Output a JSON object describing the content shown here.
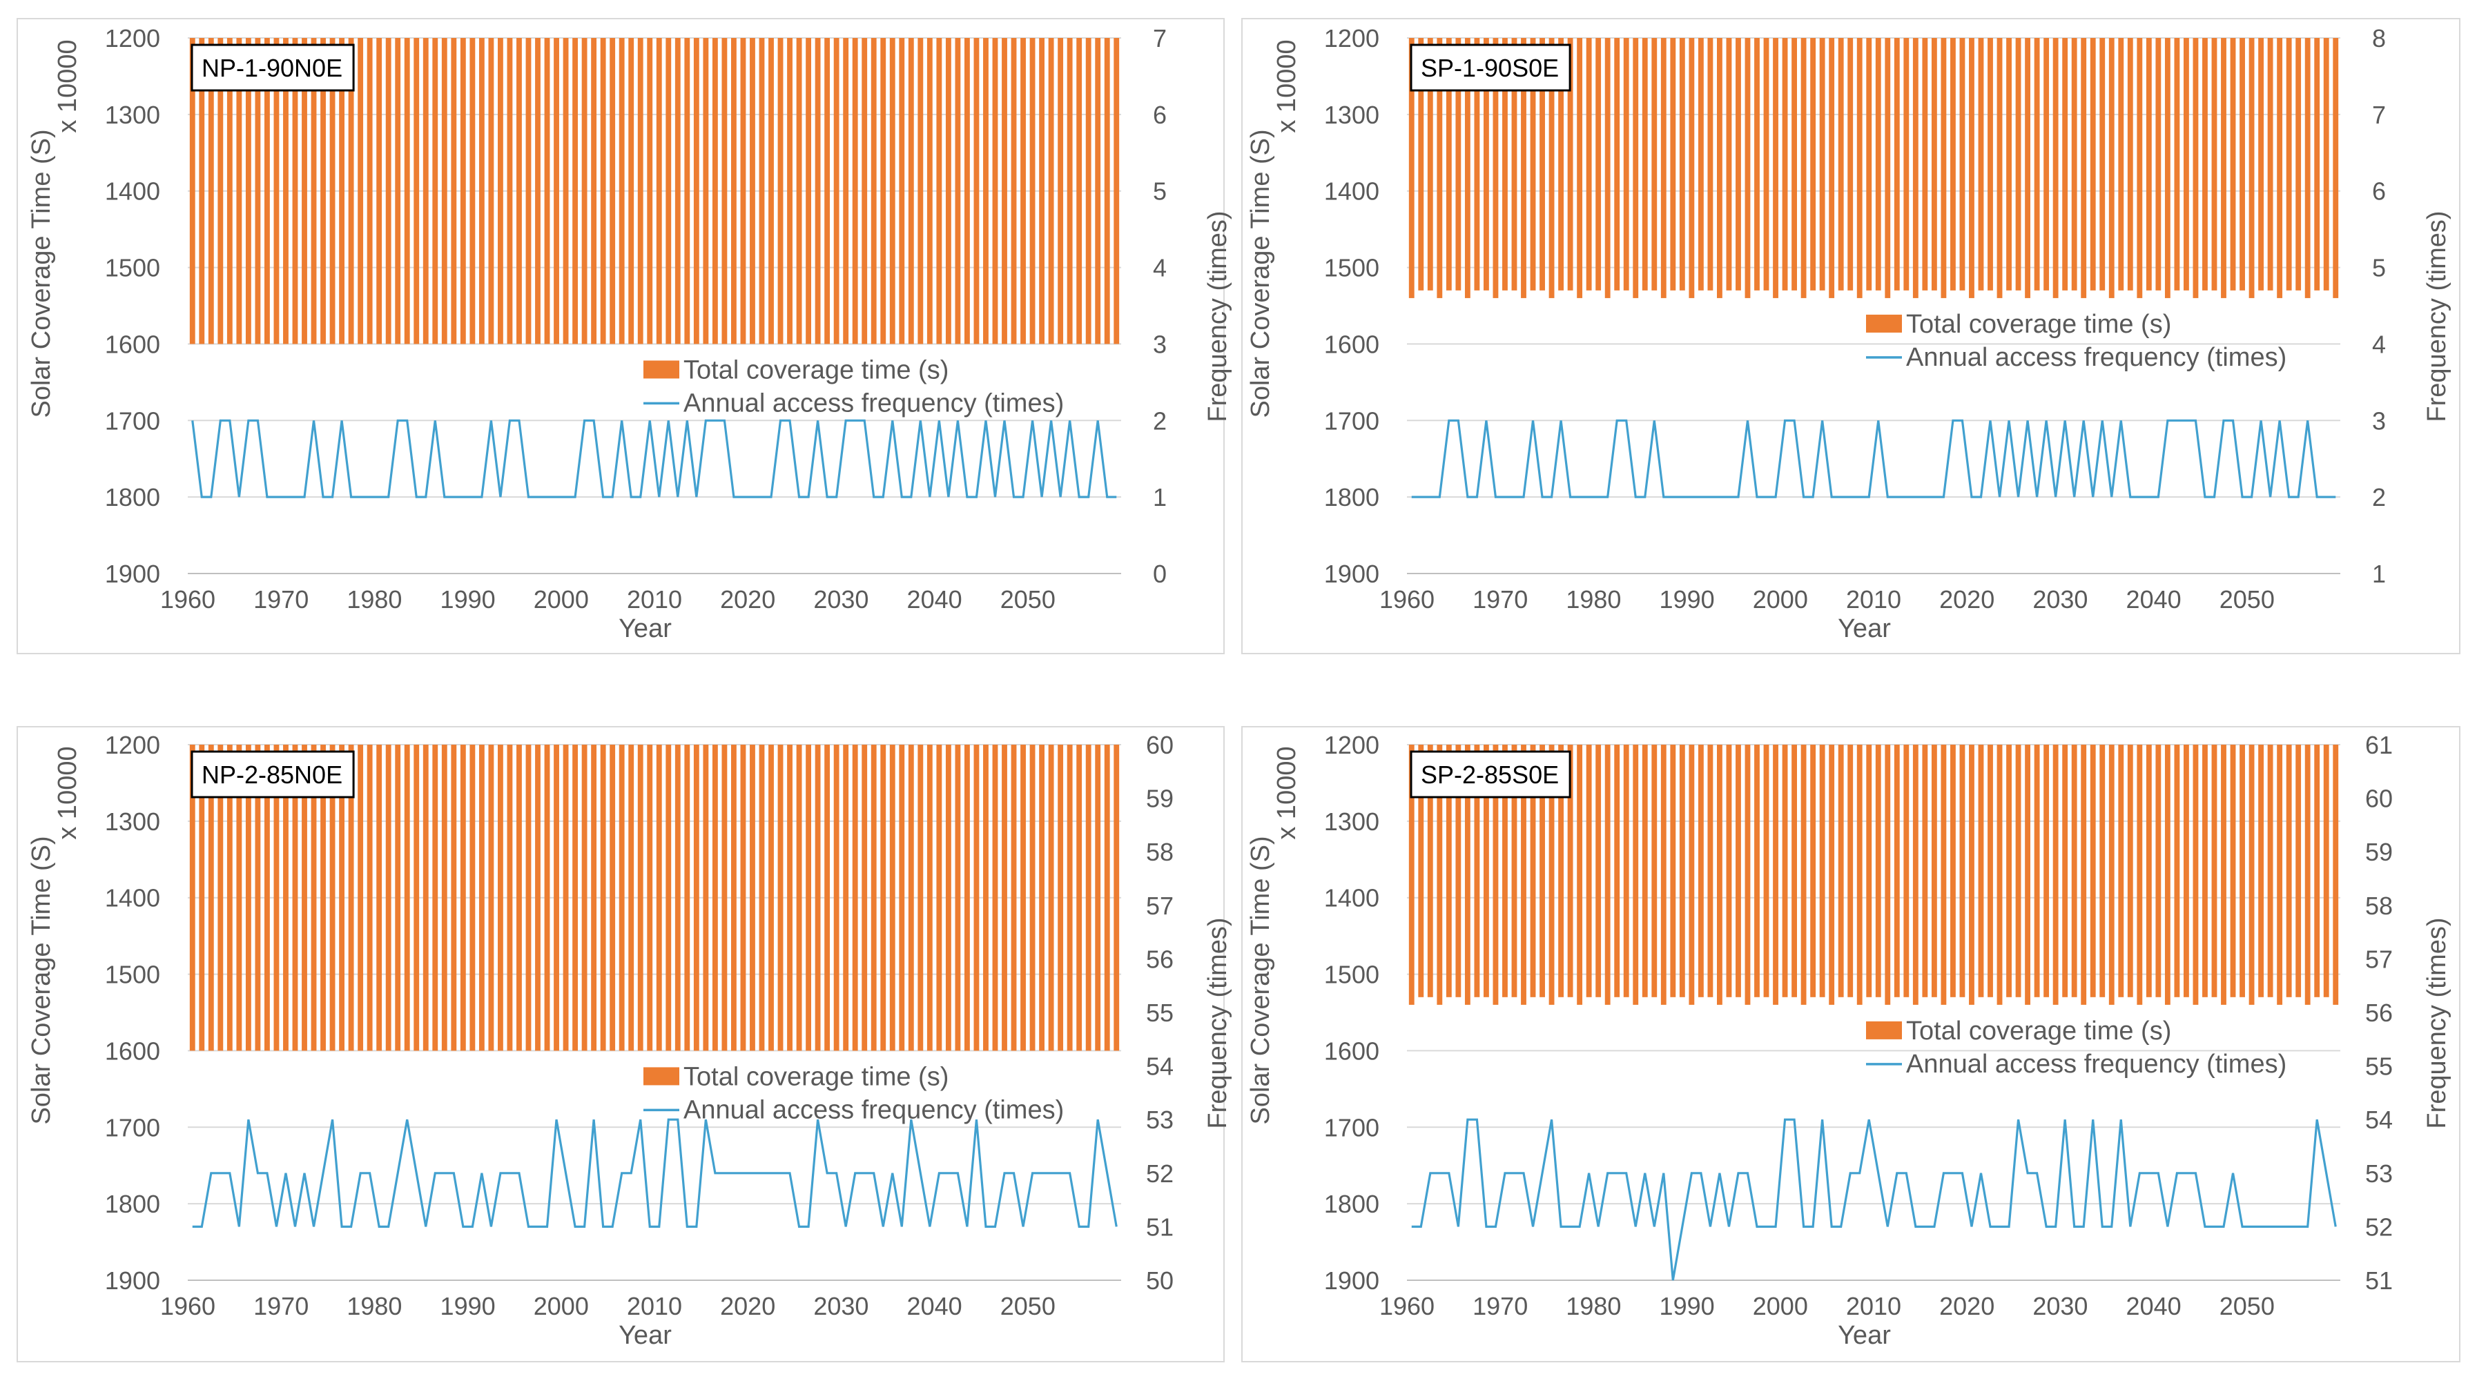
{
  "figure": {
    "panel_count": 4
  },
  "legend_labels": {
    "bar": "Total coverage time (s)",
    "line": "Annual access frequency (times)"
  },
  "colors": {
    "bar": "#ED7D31",
    "line": "#41A0CF",
    "axis_text": "#595959",
    "grid": "#D9D9D9",
    "frame": "#D9D9D9",
    "background": "#FFFFFF"
  },
  "chart_data": [
    {
      "type": "bar+line",
      "title": "NP-1-90N0E",
      "xlabel": "Year",
      "ylabel": "Solar Coverage Time (S)",
      "ylabel_multiplier": "x 10000",
      "y2label": "Frequency (times)",
      "xlim": [
        1960,
        2060
      ],
      "x_ticks": [
        "1960",
        "1970",
        "1980",
        "1990",
        "2000",
        "2010",
        "2020",
        "2030",
        "2040",
        "2050"
      ],
      "y_ticks": [
        "1200",
        "1300",
        "1400",
        "1500",
        "1600",
        "1700",
        "1800",
        "1900"
      ],
      "ylim_reversed": [
        1200,
        1900
      ],
      "y2_ticks": [
        "7",
        "6",
        "5",
        "4",
        "3",
        "2",
        "1",
        "0"
      ],
      "y2lim": [
        0,
        7
      ],
      "bar_series": {
        "name": "Total coverage time (s)",
        "x_start": 1960,
        "x_end": 2059,
        "bar_top": 1200,
        "bar_bottom": 1600
      },
      "line_series": {
        "name": "Annual access frequency (times)",
        "x_start": 1960,
        "values": [
          2,
          1,
          1,
          2,
          2,
          1,
          2,
          2,
          1,
          1,
          1,
          1,
          1,
          2,
          1,
          1,
          2,
          1,
          1,
          1,
          1,
          1,
          2,
          2,
          1,
          1,
          2,
          1,
          1,
          1,
          1,
          1,
          2,
          1,
          2,
          2,
          1,
          1,
          1,
          1,
          1,
          1,
          2,
          2,
          1,
          1,
          2,
          1,
          1,
          2,
          1,
          2,
          1,
          2,
          1,
          2,
          2,
          2,
          1,
          1,
          1,
          1,
          1,
          2,
          2,
          1,
          1,
          2,
          1,
          1,
          2,
          2,
          2,
          1,
          1,
          2,
          1,
          1,
          2,
          1,
          2,
          1,
          2,
          1,
          1,
          2,
          1,
          2,
          1,
          1,
          2,
          1,
          2,
          1,
          2,
          1,
          1,
          2,
          1,
          1
        ]
      }
    },
    {
      "type": "bar+line",
      "title": "SP-1-90S0E",
      "xlabel": "Year",
      "ylabel": "Solar Coverage Time (S)",
      "ylabel_multiplier": "x 10000",
      "y2label": "Frequency (times)",
      "xlim": [
        1960,
        2060
      ],
      "x_ticks": [
        "1960",
        "1970",
        "1980",
        "1990",
        "2000",
        "2010",
        "2020",
        "2030",
        "2040",
        "2050"
      ],
      "y_ticks": [
        "1200",
        "1300",
        "1400",
        "1500",
        "1600",
        "1700",
        "1800",
        "1900"
      ],
      "ylim_reversed": [
        1200,
        1900
      ],
      "y2_ticks": [
        "8",
        "7",
        "6",
        "5",
        "4",
        "3",
        "2",
        "1"
      ],
      "y2lim": [
        1,
        8
      ],
      "bar_series": {
        "name": "Total coverage time (s)",
        "x_start": 1960,
        "x_end": 2059,
        "bar_top": 1200,
        "bar_bottom_min": 1530,
        "bar_bottom_max": 1540
      },
      "line_series": {
        "name": "Annual access frequency (times)",
        "x_start": 1960,
        "values": [
          2,
          2,
          2,
          2,
          3,
          3,
          2,
          2,
          3,
          2,
          2,
          2,
          2,
          3,
          2,
          2,
          3,
          2,
          2,
          2,
          2,
          2,
          3,
          3,
          2,
          2,
          3,
          2,
          2,
          2,
          2,
          2,
          2,
          2,
          2,
          2,
          3,
          2,
          2,
          2,
          3,
          3,
          2,
          2,
          3,
          2,
          2,
          2,
          2,
          2,
          3,
          2,
          2,
          2,
          2,
          2,
          2,
          2,
          3,
          3,
          2,
          2,
          3,
          2,
          3,
          2,
          3,
          2,
          3,
          2,
          3,
          2,
          3,
          2,
          3,
          2,
          3,
          2,
          2,
          2,
          2,
          3,
          3,
          3,
          3,
          2,
          2,
          3,
          3,
          2,
          2,
          3,
          2,
          3,
          2,
          2,
          3,
          2,
          2,
          2
        ]
      }
    },
    {
      "type": "bar+line",
      "title": "NP-2-85N0E",
      "xlabel": "Year",
      "ylabel": "Solar Coverage Time (S)",
      "ylabel_multiplier": "x 10000",
      "y2label": "Frequency (times)",
      "xlim": [
        1960,
        2060
      ],
      "x_ticks": [
        "1960",
        "1970",
        "1980",
        "1990",
        "2000",
        "2010",
        "2020",
        "2030",
        "2040",
        "2050"
      ],
      "y_ticks": [
        "1200",
        "1300",
        "1400",
        "1500",
        "1600",
        "1700",
        "1800",
        "1900"
      ],
      "ylim_reversed": [
        1200,
        1900
      ],
      "y2_ticks": [
        "60",
        "59",
        "58",
        "57",
        "56",
        "55",
        "54",
        "53",
        "52",
        "51",
        "50"
      ],
      "y2lim": [
        50,
        60
      ],
      "bar_series": {
        "name": "Total coverage time (s)",
        "x_start": 1960,
        "x_end": 2059,
        "bar_top": 1200,
        "bar_bottom": 1600
      },
      "line_series": {
        "name": "Annual access frequency (times)",
        "x_start": 1960,
        "values": [
          51,
          51,
          52,
          52,
          52,
          51,
          53,
          52,
          52,
          51,
          52,
          51,
          52,
          51,
          52,
          53,
          51,
          51,
          52,
          52,
          51,
          51,
          52,
          53,
          52,
          51,
          52,
          52,
          52,
          51,
          51,
          52,
          51,
          52,
          52,
          52,
          51,
          51,
          51,
          53,
          52,
          51,
          51,
          53,
          51,
          51,
          52,
          52,
          53,
          51,
          51,
          53,
          53,
          51,
          51,
          53,
          52,
          52,
          52,
          52,
          52,
          52,
          52,
          52,
          52,
          51,
          51,
          53,
          52,
          52,
          51,
          52,
          52,
          52,
          51,
          52,
          51,
          53,
          52,
          51,
          52,
          52,
          52,
          51,
          53,
          51,
          51,
          52,
          52,
          51,
          52,
          52,
          52,
          52,
          52,
          51,
          51,
          53,
          52,
          51
        ]
      }
    },
    {
      "type": "bar+line",
      "title": "SP-2-85S0E",
      "xlabel": "Year",
      "ylabel": "Solar Coverage Time (S)",
      "ylabel_multiplier": "x 10000",
      "y2label": "Frequency (times)",
      "xlim": [
        1960,
        2060
      ],
      "x_ticks": [
        "1960",
        "1970",
        "1980",
        "1990",
        "2000",
        "2010",
        "2020",
        "2030",
        "2040",
        "2050"
      ],
      "y_ticks": [
        "1200",
        "1300",
        "1400",
        "1500",
        "1600",
        "1700",
        "1800",
        "1900"
      ],
      "ylim_reversed": [
        1200,
        1900
      ],
      "y2_ticks": [
        "61",
        "60",
        "59",
        "58",
        "57",
        "56",
        "55",
        "54",
        "53",
        "52",
        "51"
      ],
      "y2lim": [
        51,
        61
      ],
      "bar_series": {
        "name": "Total coverage time (s)",
        "x_start": 1960,
        "x_end": 2059,
        "bar_top": 1200,
        "bar_bottom_min": 1530,
        "bar_bottom_max": 1540
      },
      "line_series": {
        "name": "Annual access frequency (times)",
        "x_start": 1960,
        "values": [
          52,
          52,
          53,
          53,
          53,
          52,
          54,
          54,
          52,
          52,
          53,
          53,
          53,
          52,
          53,
          54,
          52,
          52,
          52,
          53,
          52,
          53,
          53,
          53,
          52,
          53,
          52,
          53,
          51,
          52,
          53,
          53,
          52,
          53,
          52,
          53,
          53,
          52,
          52,
          52,
          54,
          54,
          52,
          52,
          54,
          52,
          52,
          53,
          53,
          54,
          53,
          52,
          53,
          53,
          52,
          52,
          52,
          53,
          53,
          53,
          52,
          53,
          52,
          52,
          52,
          54,
          53,
          53,
          52,
          52,
          54,
          52,
          52,
          54,
          52,
          52,
          54,
          52,
          53,
          53,
          53,
          52,
          53,
          53,
          53,
          52,
          52,
          52,
          53,
          52,
          52,
          52,
          52,
          52,
          52,
          52,
          52,
          54,
          53,
          52
        ]
      }
    }
  ]
}
